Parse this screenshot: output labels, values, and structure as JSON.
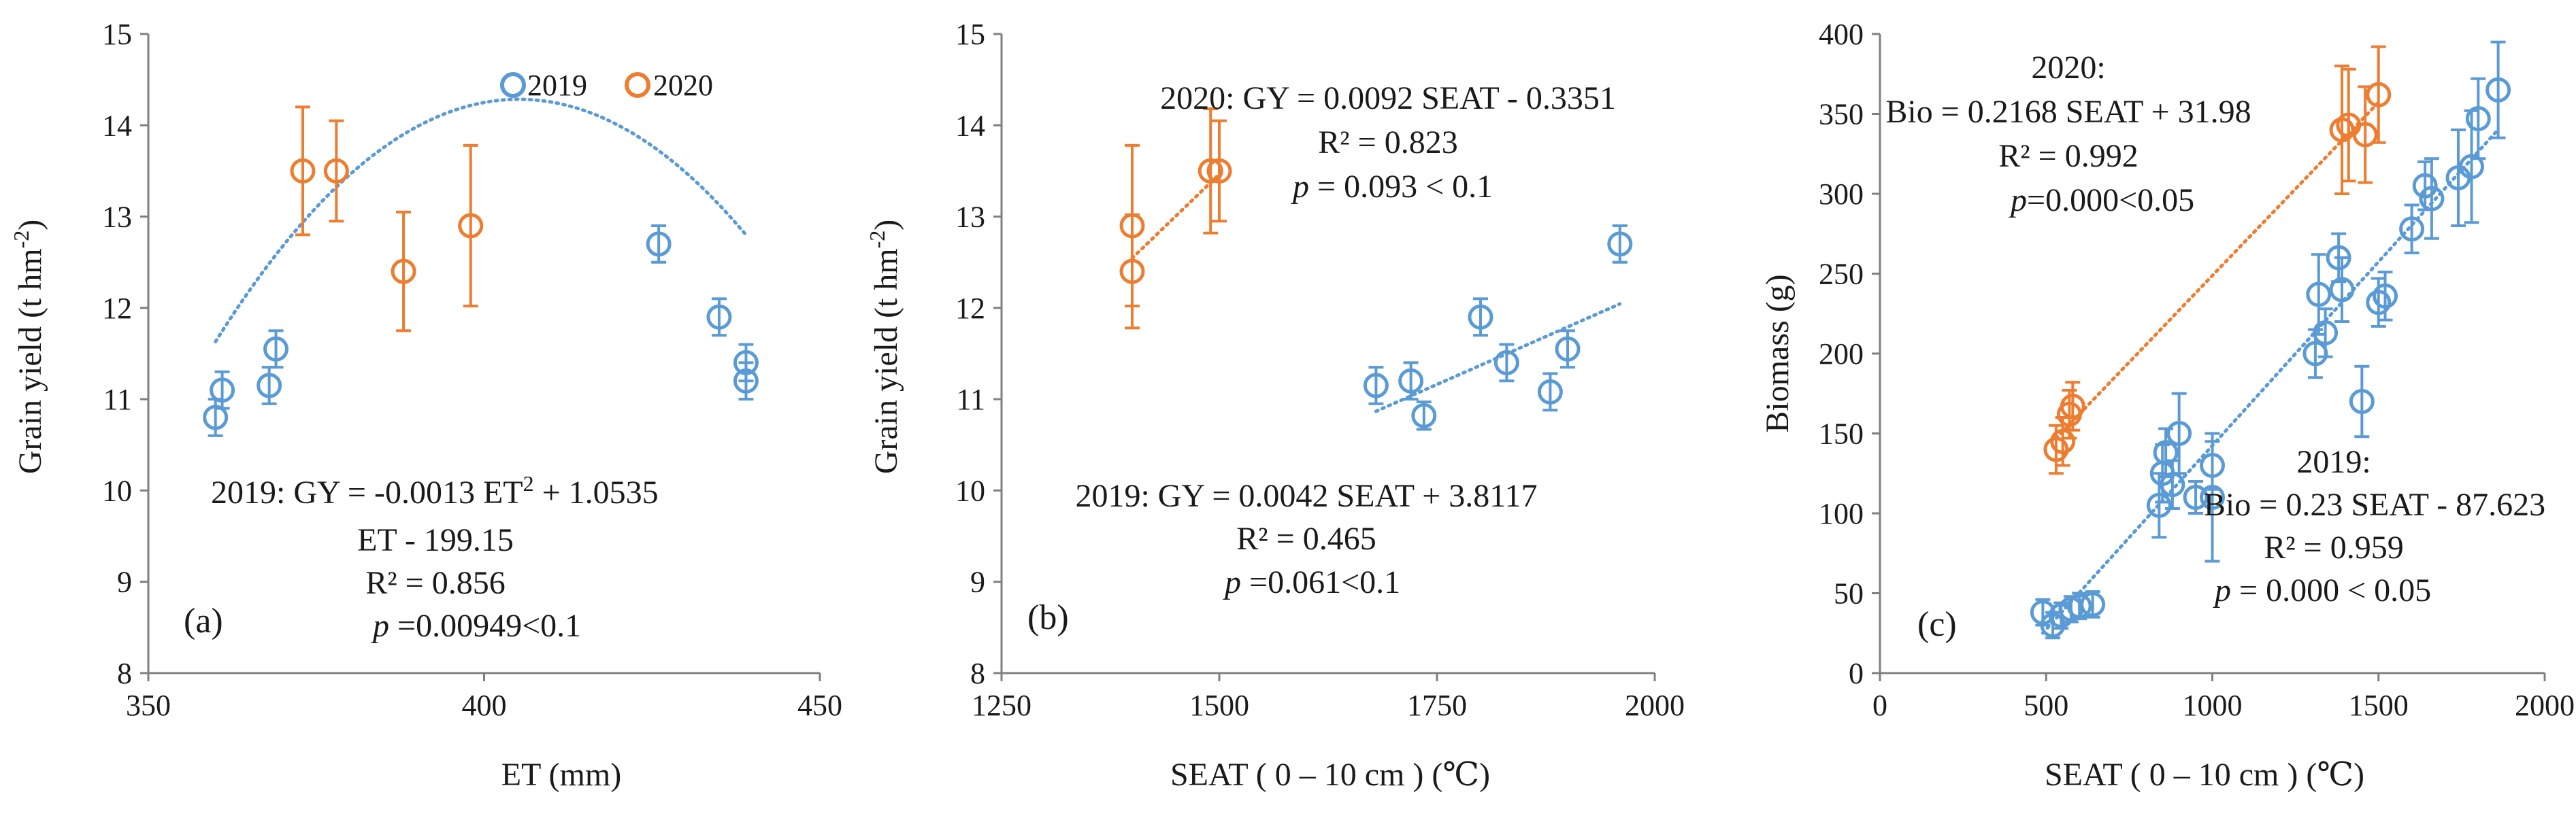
{
  "colors": {
    "s2019": "#5b9bd5",
    "s2020": "#ed7d31",
    "axis": "#7f7f7f",
    "text": "#1a1a1a"
  },
  "legend": {
    "items": [
      "2019",
      "2020"
    ]
  },
  "chart_data": [
    {
      "type": "scatter",
      "panel": "(a)",
      "xlabel": "ET (mm)",
      "ylabel": "Grain yield (t hm-2)",
      "xlim": [
        350,
        450
      ],
      "ylim": [
        8,
        15
      ],
      "xticks": [
        "350",
        "400",
        "450"
      ],
      "yticks": [
        "8",
        "9",
        "10",
        "11",
        "12",
        "13",
        "14",
        "15"
      ],
      "series": [
        {
          "name": "2019",
          "points": [
            {
              "x": 360,
              "y": 10.8,
              "err": 0.2
            },
            {
              "x": 361,
              "y": 11.1,
              "err": 0.2
            },
            {
              "x": 368,
              "y": 11.15,
              "err": 0.2
            },
            {
              "x": 369,
              "y": 11.55,
              "err": 0.2
            },
            {
              "x": 426,
              "y": 12.7,
              "err": 0.2
            },
            {
              "x": 435,
              "y": 11.9,
              "err": 0.2
            },
            {
              "x": 439,
              "y": 11.4,
              "err": 0.2
            },
            {
              "x": 439,
              "y": 11.2,
              "err": 0.2
            }
          ]
        },
        {
          "name": "2020",
          "points": [
            {
              "x": 373,
              "y": 13.5,
              "err": 0.7
            },
            {
              "x": 378,
              "y": 13.5,
              "err": 0.55
            },
            {
              "x": 388,
              "y": 12.4,
              "err": 0.65
            },
            {
              "x": 398,
              "y": 12.9,
              "err": 0.88
            }
          ]
        }
      ],
      "trendlines": [
        {
          "series": "2019",
          "kind": "poly2",
          "coef": [
            -0.0013,
            1.0535,
            -199.15
          ],
          "range": [
            360,
            439
          ]
        }
      ],
      "annotations": [
        {
          "id": "eq2019",
          "lines": [
            "2019: GY = -0.0013 ET",
            "2",
            " + 1.0535",
            "ET - 199.15",
            "R² = 0.856",
            "p",
            " =0.00949<0.1"
          ]
        }
      ]
    },
    {
      "type": "scatter",
      "panel": "(b)",
      "xlabel": "SEAT ( 0 – 10 cm ) (℃)",
      "ylabel": "Grain yield (t hm-2)",
      "xlim": [
        1250,
        2000
      ],
      "ylim": [
        8,
        15
      ],
      "xticks": [
        "1250",
        "1500",
        "1750",
        "2000"
      ],
      "yticks": [
        "8",
        "9",
        "10",
        "11",
        "12",
        "13",
        "14",
        "15"
      ],
      "series": [
        {
          "name": "2019",
          "points": [
            {
              "x": 1680,
              "y": 11.15,
              "err": 0.2
            },
            {
              "x": 1720,
              "y": 11.2,
              "err": 0.2
            },
            {
              "x": 1735,
              "y": 10.82,
              "err": 0.15
            },
            {
              "x": 1800,
              "y": 11.9,
              "err": 0.2
            },
            {
              "x": 1830,
              "y": 11.4,
              "err": 0.2
            },
            {
              "x": 1880,
              "y": 11.08,
              "err": 0.2
            },
            {
              "x": 1900,
              "y": 11.55,
              "err": 0.2
            },
            {
              "x": 1960,
              "y": 12.7,
              "err": 0.2
            }
          ]
        },
        {
          "name": "2020",
          "points": [
            {
              "x": 1400,
              "y": 12.9,
              "err": 0.88
            },
            {
              "x": 1400,
              "y": 12.4,
              "err": 0.62
            },
            {
              "x": 1490,
              "y": 13.5,
              "err": 0.68
            },
            {
              "x": 1500,
              "y": 13.5,
              "err": 0.55
            }
          ]
        }
      ],
      "trendlines": [
        {
          "series": "2019",
          "kind": "linear",
          "coef": [
            0.0042,
            3.8117
          ],
          "range": [
            1680,
            1960
          ]
        },
        {
          "series": "2020",
          "kind": "linear",
          "coef": [
            0.0092,
            -0.3351
          ],
          "range": [
            1400,
            1500
          ]
        }
      ],
      "annotations": [
        {
          "id": "eq2020",
          "lines": [
            "2020: GY = 0.0092  SEAT - 0.3351",
            "R² = 0.823",
            "p",
            " = 0.093 < 0.1"
          ]
        },
        {
          "id": "eq2019",
          "lines": [
            "2019: GY = 0.0042  SEAT + 3.8117",
            "R² = 0.465",
            "p",
            " =0.061<0.1"
          ]
        }
      ]
    },
    {
      "type": "scatter",
      "panel": "(c)",
      "xlabel": "SEAT ( 0 – 10 cm ) (℃)",
      "ylabel": "Biomass  (g)",
      "xlim": [
        0,
        2000
      ],
      "ylim": [
        0,
        400
      ],
      "xticks": [
        "0",
        "500",
        "1000",
        "1500",
        "2000"
      ],
      "yticks": [
        "0",
        "50",
        "100",
        "150",
        "200",
        "250",
        "300",
        "350",
        "400"
      ],
      "series": [
        {
          "name": "2019",
          "points": [
            {
              "x": 490,
              "y": 38,
              "err": 8
            },
            {
              "x": 520,
              "y": 30,
              "err": 8
            },
            {
              "x": 545,
              "y": 36,
              "err": 8
            },
            {
              "x": 575,
              "y": 40,
              "err": 8
            },
            {
              "x": 600,
              "y": 42,
              "err": 8
            },
            {
              "x": 640,
              "y": 43,
              "err": 8
            },
            {
              "x": 840,
              "y": 105,
              "err": 20
            },
            {
              "x": 850,
              "y": 125,
              "err": 18
            },
            {
              "x": 860,
              "y": 138,
              "err": 15
            },
            {
              "x": 880,
              "y": 118,
              "err": 15
            },
            {
              "x": 900,
              "y": 150,
              "err": 25
            },
            {
              "x": 950,
              "y": 110,
              "err": 10
            },
            {
              "x": 1000,
              "y": 130,
              "err": 15
            },
            {
              "x": 1000,
              "y": 110,
              "err": 40
            },
            {
              "x": 1310,
              "y": 200,
              "err": 15
            },
            {
              "x": 1320,
              "y": 237,
              "err": 25
            },
            {
              "x": 1340,
              "y": 213,
              "err": 15
            },
            {
              "x": 1380,
              "y": 260,
              "err": 15
            },
            {
              "x": 1390,
              "y": 240,
              "err": 20
            },
            {
              "x": 1450,
              "y": 170,
              "err": 22
            },
            {
              "x": 1500,
              "y": 232,
              "err": 15
            },
            {
              "x": 1520,
              "y": 236,
              "err": 15
            },
            {
              "x": 1600,
              "y": 278,
              "err": 15
            },
            {
              "x": 1640,
              "y": 305,
              "err": 15
            },
            {
              "x": 1660,
              "y": 297,
              "err": 25
            },
            {
              "x": 1740,
              "y": 310,
              "err": 30
            },
            {
              "x": 1780,
              "y": 317,
              "err": 35
            },
            {
              "x": 1800,
              "y": 347,
              "err": 25
            },
            {
              "x": 1860,
              "y": 365,
              "err": 30
            }
          ]
        },
        {
          "name": "2020",
          "points": [
            {
              "x": 530,
              "y": 140,
              "err": 15
            },
            {
              "x": 550,
              "y": 145,
              "err": 15
            },
            {
              "x": 570,
              "y": 162,
              "err": 15
            },
            {
              "x": 580,
              "y": 167,
              "err": 15
            },
            {
              "x": 1390,
              "y": 340,
              "err": 40
            },
            {
              "x": 1410,
              "y": 343,
              "err": 35
            },
            {
              "x": 1460,
              "y": 337,
              "err": 30
            },
            {
              "x": 1500,
              "y": 362,
              "err": 30
            }
          ]
        }
      ],
      "trendlines": [
        {
          "series": "2019",
          "kind": "linear",
          "coef": [
            0.23,
            -87.623
          ],
          "range": [
            490,
            1860
          ]
        },
        {
          "series": "2020",
          "kind": "linear",
          "coef": [
            0.2168,
            31.98
          ],
          "range": [
            530,
            1500
          ]
        }
      ],
      "annotations": [
        {
          "id": "eq2020",
          "lines": [
            "2020:",
            "Bio = 0.2168 SEAT + 31.98",
            "R² = 0.992",
            "p",
            "=0.000<0.05"
          ]
        },
        {
          "id": "eq2019",
          "lines": [
            "2019:",
            "Bio = 0.23  SEAT - 87.623",
            "R² = 0.959",
            "p",
            " = 0.000 < 0.05"
          ]
        }
      ]
    }
  ]
}
